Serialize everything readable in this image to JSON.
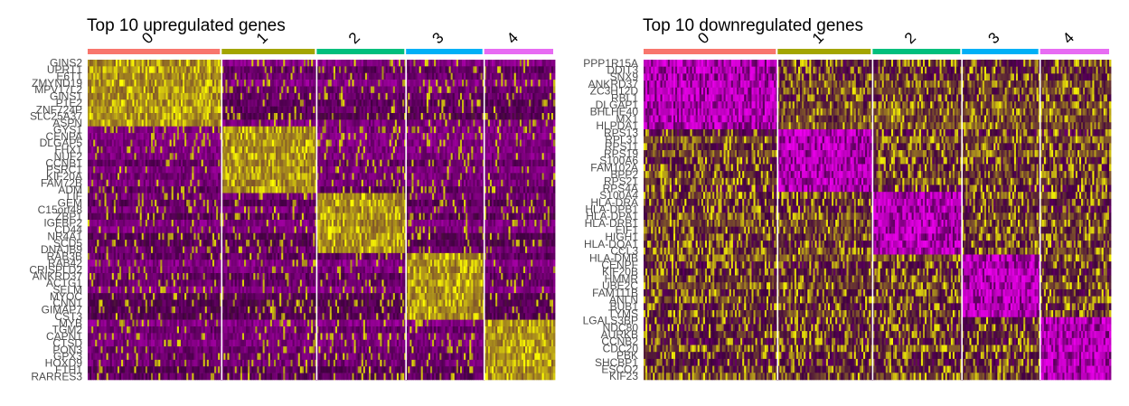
{
  "chart_data": [
    {
      "type": "heatmap",
      "title": "Top 10 upregulated genes",
      "clusters": [
        "0",
        "1",
        "2",
        "3",
        "4"
      ],
      "cluster_cells": [
        72,
        51,
        48,
        42,
        38
      ],
      "cluster_colors": [
        "#F8766D",
        "#A3A500",
        "#00BF7D",
        "#00B0F6",
        "#E76BF3"
      ],
      "genes": [
        "GINS2",
        "UPRT1",
        "E6T1",
        "ZMYND19",
        "MPV17L2",
        "GINS1",
        "P1E2",
        "ZNF724P",
        "SLC25A37",
        "ASPN",
        "GYS1",
        "CENPA",
        "DLGAP5",
        "FHX1",
        "NUF2",
        "CCNB1",
        "PSRC1",
        "KIF20A",
        "FAM72B",
        "ADM",
        "LIF",
        "GEM",
        "C15orf48",
        "ZBP1",
        "IGFBP2",
        "CD44",
        "NR4A1",
        "SCD5",
        "DNAJB9",
        "RAB3B",
        "RAB42",
        "CRISPLD2",
        "ANKRD37",
        "ACTG1",
        "SELM",
        "MYOC",
        "CNN1",
        "GIMAP7",
        "CST3",
        "MYB",
        "TGM2",
        "CAPN1",
        "CTSD",
        "PON3",
        "GPX3",
        "HOXD9",
        "FTH1",
        "RARRES3"
      ],
      "colorscale": [
        "#FF00FF",
        "#000000",
        "#FFFF00"
      ],
      "xlabel": "",
      "ylabel": ""
    },
    {
      "type": "heatmap",
      "title": "Top 10 downregulated genes",
      "clusters": [
        "0",
        "1",
        "2",
        "3",
        "4"
      ],
      "cluster_cells": [
        72,
        51,
        48,
        42,
        38
      ],
      "cluster_colors": [
        "#F8766D",
        "#A3A500",
        "#00BF7D",
        "#00B0F6",
        "#E76BF3"
      ],
      "genes": [
        "PPP1R15A",
        "DDIT3",
        "SNX9",
        "ANKRD37",
        "ZC3H12D",
        "RBL1",
        "DLGAP1",
        "BHLHE40",
        "MX1",
        "HLPDA1",
        "RPS13",
        "RPL31",
        "RPS11",
        "RPS19",
        "S100A6",
        "FAM102A",
        "BPP2",
        "RPS21",
        "RPS4A",
        "S100A4",
        "HLA-DRA",
        "HLA-DPB1",
        "HLA-DPA1",
        "HLA-DRB1",
        "EIF1",
        "HIGH1",
        "HLA-DQA1",
        "CCL3",
        "HLA-DMB",
        "CENPF",
        "KIF20B",
        "HMMR",
        "UBE2C",
        "FAM111B",
        "ANLN",
        "BUB1",
        "TYMS",
        "LGALS3BP",
        "NDC80",
        "AURKB",
        "CCNB2",
        "CDC20",
        "PBK",
        "SHCBP1",
        "ESCO2",
        "KIF23"
      ],
      "colorscale": [
        "#FF00FF",
        "#000000",
        "#FFFF00"
      ],
      "xlabel": "",
      "ylabel": ""
    }
  ]
}
